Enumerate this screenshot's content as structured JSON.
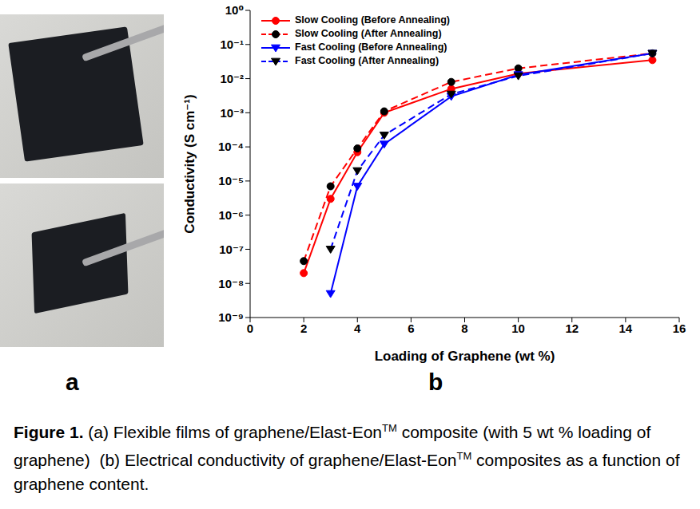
{
  "chart_data": {
    "type": "line",
    "xlabel": "Loading of Graphene (wt %)",
    "ylabel": "Conductivity (S cm⁻¹)",
    "log": "y",
    "grid": false,
    "legend": "upper left",
    "xlim": [
      0,
      16
    ],
    "xticks": [
      0,
      2,
      4,
      6,
      8,
      10,
      12,
      14,
      16
    ],
    "ylim": [
      1e-09,
      1
    ],
    "yticks": [
      {
        "value": 1e-09,
        "label": "10⁻⁹"
      },
      {
        "value": 1e-08,
        "label": "10⁻⁸"
      },
      {
        "value": 1e-07,
        "label": "10⁻⁷"
      },
      {
        "value": 1e-06,
        "label": "10⁻⁶"
      },
      {
        "value": 1e-05,
        "label": "10⁻⁵"
      },
      {
        "value": 0.0001,
        "label": "10⁻⁴"
      },
      {
        "value": 0.001,
        "label": "10⁻³"
      },
      {
        "value": 0.01,
        "label": "10⁻²"
      },
      {
        "value": 0.1,
        "label": "10⁻¹"
      },
      {
        "value": 1,
        "label": "10⁰"
      }
    ],
    "series": [
      {
        "name": "Slow Cooling (Before Annealing)",
        "color": "#ff0000",
        "colors": [
          "#ff0000",
          "#ff0000",
          "#ff0000",
          "#ff0000",
          "#ff0000",
          "#ff0000",
          "#ff0000"
        ],
        "marker": "circle",
        "line_style": "solid",
        "x": [
          2,
          3,
          4,
          5,
          7.5,
          10,
          15
        ],
        "values": [
          2e-08,
          3e-06,
          7e-05,
          0.001,
          0.005,
          0.014,
          0.035
        ]
      },
      {
        "name": "Slow Cooling (After Annealing)",
        "color": "#ff0000",
        "colors": [
          "#000000",
          "#000000",
          "#000000",
          "#000000",
          "#000000",
          "#000000",
          "#000000"
        ],
        "marker": "circle",
        "line_style": "dashed",
        "x": [
          2,
          3,
          4,
          5,
          7.5,
          10,
          15
        ],
        "values": [
          4.5e-08,
          7e-06,
          9e-05,
          0.0011,
          0.008,
          0.02,
          0.055
        ]
      },
      {
        "name": "Fast Cooling (Before Annealing)",
        "color": "#0000ff",
        "colors": [
          "#0000ff",
          "#0000ff",
          "#0000ff",
          "#0000ff",
          "#0000ff",
          "#0000ff"
        ],
        "marker": "triangle-down",
        "line_style": "solid",
        "x": [
          3,
          4,
          5,
          7.5,
          10,
          15
        ],
        "values": [
          5e-09,
          7e-06,
          0.00012,
          0.003,
          0.013,
          0.055
        ]
      },
      {
        "name": "Fast Cooling (After Annealing)",
        "color": "#0000ff",
        "colors": [
          "#000000",
          "#000000",
          "#000000",
          "#000000",
          "#000000",
          "#000000"
        ],
        "marker": "triangle-down",
        "line_style": "dashed",
        "x": [
          3,
          4,
          5,
          7.5,
          10,
          15
        ],
        "values": [
          1e-07,
          2e-05,
          0.00022,
          0.0035,
          0.012,
          0.055
        ]
      }
    ]
  },
  "panel_labels": [
    "a",
    "b"
  ],
  "caption": {
    "label": "Figure 1.",
    "parts": [
      " (a) Flexible films of graphene/Elast-Eon",
      "TM",
      " composite (with 5 wt % loading of graphene)  (b) Electrical conductivity of graphene/Elast-Eon",
      "TM",
      " composites as a function of graphene content."
    ]
  }
}
